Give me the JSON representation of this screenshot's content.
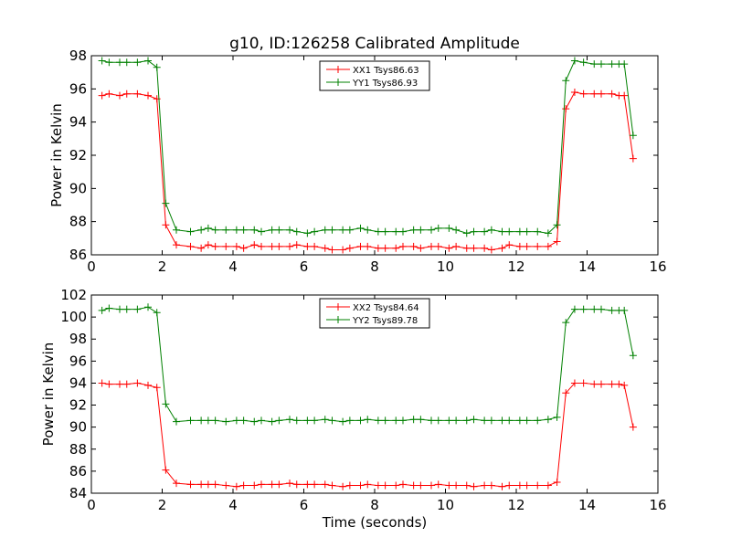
{
  "figure": {
    "title": "g10, ID:126258 Calibrated Amplitude"
  },
  "colors": {
    "red": "#ff0000",
    "green": "#008000"
  },
  "chart_data": [
    {
      "type": "line",
      "title": "g10, ID:126258 Calibrated Amplitude",
      "xlabel": "",
      "ylabel": "Power in Kelvin",
      "xlim": [
        0,
        16
      ],
      "ylim": [
        86,
        98
      ],
      "xticks": [
        0,
        2,
        4,
        6,
        8,
        10,
        12,
        14,
        16
      ],
      "yticks": [
        86,
        88,
        90,
        92,
        94,
        96,
        98
      ],
      "grid": false,
      "legend_position": "top-center",
      "marker": "+",
      "x": [
        0.3,
        0.5,
        0.8,
        1.0,
        1.3,
        1.6,
        1.85,
        2.1,
        2.4,
        2.8,
        3.1,
        3.3,
        3.5,
        3.8,
        4.1,
        4.3,
        4.6,
        4.8,
        5.1,
        5.3,
        5.6,
        5.8,
        6.1,
        6.3,
        6.6,
        6.8,
        7.1,
        7.3,
        7.6,
        7.8,
        8.1,
        8.3,
        8.6,
        8.8,
        9.1,
        9.3,
        9.6,
        9.8,
        10.1,
        10.3,
        10.6,
        10.8,
        11.1,
        11.3,
        11.6,
        11.8,
        12.1,
        12.3,
        12.6,
        12.9,
        13.15,
        13.4,
        13.65,
        13.9,
        14.2,
        14.4,
        14.7,
        14.9,
        15.05,
        15.3
      ],
      "series": [
        {
          "name": "XX1 Tsys86.63",
          "color": "#ff0000",
          "values": [
            95.6,
            95.7,
            95.6,
            95.7,
            95.7,
            95.6,
            95.4,
            87.8,
            86.6,
            86.5,
            86.4,
            86.6,
            86.5,
            86.5,
            86.5,
            86.4,
            86.6,
            86.5,
            86.5,
            86.5,
            86.5,
            86.6,
            86.5,
            86.5,
            86.4,
            86.3,
            86.3,
            86.4,
            86.5,
            86.5,
            86.4,
            86.4,
            86.4,
            86.5,
            86.5,
            86.4,
            86.5,
            86.5,
            86.4,
            86.5,
            86.4,
            86.4,
            86.4,
            86.3,
            86.4,
            86.6,
            86.5,
            86.5,
            86.5,
            86.5,
            86.8,
            94.8,
            95.8,
            95.7,
            95.7,
            95.7,
            95.7,
            95.6,
            95.6,
            91.8
          ]
        },
        {
          "name": "YY1 Tsys86.93",
          "color": "#008000",
          "values": [
            97.7,
            97.6,
            97.6,
            97.6,
            97.6,
            97.7,
            97.3,
            89.1,
            87.5,
            87.4,
            87.5,
            87.6,
            87.5,
            87.5,
            87.5,
            87.5,
            87.5,
            87.4,
            87.5,
            87.5,
            87.5,
            87.4,
            87.3,
            87.4,
            87.5,
            87.5,
            87.5,
            87.5,
            87.6,
            87.5,
            87.4,
            87.4,
            87.4,
            87.4,
            87.5,
            87.5,
            87.5,
            87.6,
            87.6,
            87.5,
            87.3,
            87.4,
            87.4,
            87.5,
            87.4,
            87.4,
            87.4,
            87.4,
            87.4,
            87.3,
            87.8,
            96.5,
            97.7,
            97.6,
            97.5,
            97.5,
            97.5,
            97.5,
            97.5,
            93.2
          ]
        }
      ]
    },
    {
      "type": "line",
      "title": "",
      "xlabel": "Time (seconds)",
      "ylabel": "Power in Kelvin",
      "xlim": [
        0,
        16
      ],
      "ylim": [
        84,
        102
      ],
      "xticks": [
        0,
        2,
        4,
        6,
        8,
        10,
        12,
        14,
        16
      ],
      "yticks": [
        84,
        86,
        88,
        90,
        92,
        94,
        96,
        98,
        100,
        102
      ],
      "grid": false,
      "legend_position": "top-center",
      "marker": "+",
      "x": [
        0.3,
        0.5,
        0.8,
        1.0,
        1.3,
        1.6,
        1.85,
        2.1,
        2.4,
        2.8,
        3.1,
        3.3,
        3.5,
        3.8,
        4.1,
        4.3,
        4.6,
        4.8,
        5.1,
        5.3,
        5.6,
        5.8,
        6.1,
        6.3,
        6.6,
        6.8,
        7.1,
        7.3,
        7.6,
        7.8,
        8.1,
        8.3,
        8.6,
        8.8,
        9.1,
        9.3,
        9.6,
        9.8,
        10.1,
        10.3,
        10.6,
        10.8,
        11.1,
        11.3,
        11.6,
        11.8,
        12.1,
        12.3,
        12.6,
        12.9,
        13.15,
        13.4,
        13.65,
        13.9,
        14.2,
        14.4,
        14.7,
        14.9,
        15.05,
        15.3
      ],
      "series": [
        {
          "name": "XX2 Tsys84.64",
          "color": "#ff0000",
          "values": [
            94.0,
            93.9,
            93.9,
            93.9,
            94.0,
            93.8,
            93.6,
            86.1,
            84.9,
            84.8,
            84.8,
            84.8,
            84.8,
            84.7,
            84.6,
            84.7,
            84.7,
            84.8,
            84.8,
            84.8,
            84.9,
            84.8,
            84.8,
            84.8,
            84.8,
            84.7,
            84.6,
            84.7,
            84.7,
            84.8,
            84.7,
            84.7,
            84.7,
            84.8,
            84.7,
            84.7,
            84.7,
            84.8,
            84.7,
            84.7,
            84.7,
            84.6,
            84.7,
            84.7,
            84.6,
            84.7,
            84.7,
            84.7,
            84.7,
            84.7,
            85.0,
            93.1,
            94.0,
            94.0,
            93.9,
            93.9,
            93.9,
            93.9,
            93.8,
            90.0
          ]
        },
        {
          "name": "YY2 Tsys89.78",
          "color": "#008000",
          "values": [
            100.6,
            100.8,
            100.7,
            100.7,
            100.7,
            100.9,
            100.4,
            92.1,
            90.5,
            90.6,
            90.6,
            90.6,
            90.6,
            90.5,
            90.6,
            90.6,
            90.5,
            90.6,
            90.5,
            90.6,
            90.7,
            90.6,
            90.6,
            90.6,
            90.7,
            90.6,
            90.5,
            90.6,
            90.6,
            90.7,
            90.6,
            90.6,
            90.6,
            90.6,
            90.7,
            90.7,
            90.6,
            90.6,
            90.6,
            90.6,
            90.6,
            90.7,
            90.6,
            90.6,
            90.6,
            90.6,
            90.6,
            90.6,
            90.6,
            90.7,
            90.9,
            99.5,
            100.7,
            100.7,
            100.7,
            100.7,
            100.6,
            100.6,
            100.6,
            96.5
          ]
        }
      ]
    }
  ]
}
